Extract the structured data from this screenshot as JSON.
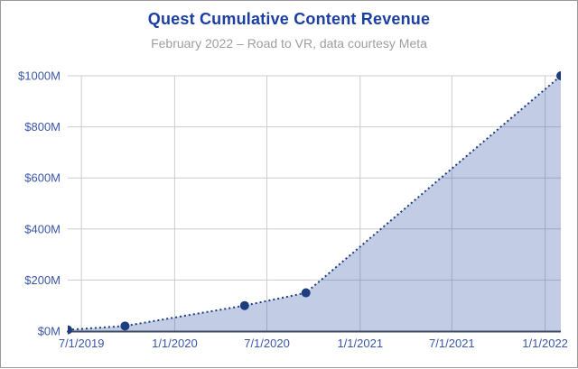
{
  "window": {
    "border_color": "#999999",
    "background": "#ffffff"
  },
  "header": {
    "title": "Quest Cumulative Content Revenue",
    "subtitle": "February 2022 – Road to VR, data courtesy Meta"
  },
  "chart_data": {
    "type": "area",
    "title": "Quest Cumulative Content Revenue",
    "subtitle": "February 2022 – Road to VR, data courtesy Meta",
    "x_type": "date",
    "x_domain": [
      "2019-06-04",
      "2022-02-01"
    ],
    "ylim": [
      0,
      1000
    ],
    "grid": true,
    "legend": "none",
    "line_style": "dotted",
    "points": [
      {
        "date": "2019-06-04",
        "value": 5
      },
      {
        "date": "2019-09-25",
        "value": 20
      },
      {
        "date": "2020-05-18",
        "value": 100
      },
      {
        "date": "2020-09-16",
        "value": 150
      },
      {
        "date": "2022-02-01",
        "value": 1000
      }
    ],
    "x_ticks": [
      {
        "date": "2019-07-01",
        "label": "7/1/2019"
      },
      {
        "date": "2020-01-01",
        "label": "1/1/2020"
      },
      {
        "date": "2020-07-01",
        "label": "7/1/2020"
      },
      {
        "date": "2021-01-01",
        "label": "1/1/2021"
      },
      {
        "date": "2021-07-01",
        "label": "7/1/2021"
      },
      {
        "date": "2022-01-01",
        "label": "1/1/2022"
      }
    ],
    "y_ticks": [
      {
        "value": 0,
        "label": "$0M"
      },
      {
        "value": 200,
        "label": "$200M"
      },
      {
        "value": 400,
        "label": "$400M"
      },
      {
        "value": 600,
        "label": "$600M"
      },
      {
        "value": 800,
        "label": "$800M"
      },
      {
        "value": 1000,
        "label": "$1000M"
      }
    ],
    "styles": {
      "line_color": "#1e3d80",
      "marker_color": "#1e3d80",
      "marker_radius": 5,
      "fill_color": "#3558a8",
      "fill_opacity": 0.3,
      "grid_color": "#cccccc",
      "axis_line_color": "#3d4a63",
      "tick_label_color": "#3a57a8",
      "title_color": "#1b3fa2",
      "subtitle_color": "#9e9e9e"
    }
  }
}
